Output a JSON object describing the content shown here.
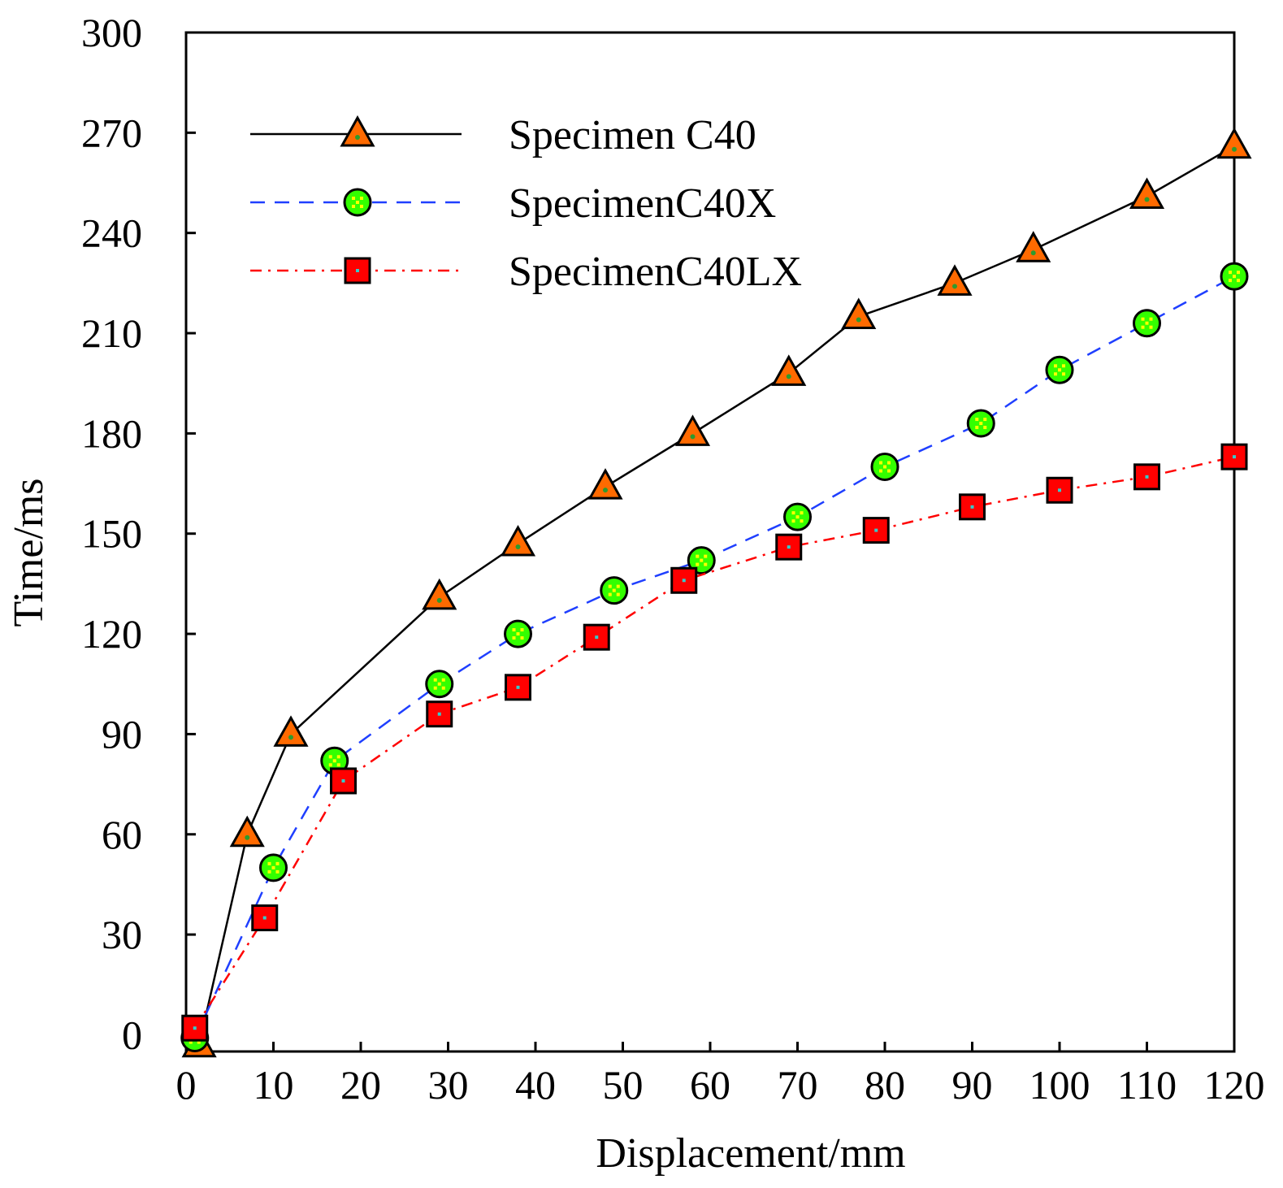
{
  "chart_data": {
    "type": "line",
    "title": "",
    "xlabel": "Displacement/mm",
    "ylabel": "Time/ms",
    "xlim": [
      0,
      120
    ],
    "ylim": [
      -5,
      300
    ],
    "xticks": [
      0,
      10,
      20,
      30,
      40,
      50,
      60,
      70,
      80,
      90,
      100,
      110,
      120
    ],
    "yticks": [
      0,
      30,
      60,
      90,
      120,
      150,
      180,
      210,
      240,
      270,
      300
    ],
    "grid": false,
    "legend_position": "top-left",
    "series": [
      {
        "name": "Specimen C40",
        "color": "#000000",
        "line_style": "solid",
        "marker": "triangle",
        "marker_fill": "#ff6a00",
        "marker_dot": "#2e9a2e",
        "x": [
          1.5,
          7,
          12,
          29,
          38,
          48,
          58,
          69,
          77,
          88,
          97,
          110,
          120
        ],
        "y": [
          -3,
          60,
          90,
          131,
          147,
          164,
          180,
          198,
          215,
          225,
          235,
          251,
          266
        ]
      },
      {
        "name": "SpecimenC40X",
        "color": "#1f3fff",
        "line_style": "dashed",
        "marker": "circle",
        "marker_fill": "#33ff00",
        "marker_dot": "#ffff00",
        "x": [
          1,
          10,
          17,
          29,
          38,
          49,
          59,
          70,
          80,
          91,
          100,
          110,
          120
        ],
        "y": [
          -1,
          50,
          82,
          105,
          120,
          133,
          142,
          155,
          170,
          183,
          199,
          213,
          227
        ]
      },
      {
        "name": "SpecimenC40LX",
        "color": "#ff0000",
        "line_style": "dash-dot",
        "marker": "square",
        "marker_fill": "#ff0000",
        "marker_dot": "#33cccc",
        "x": [
          1,
          9,
          18,
          29,
          38,
          47,
          57,
          69,
          79,
          90,
          100,
          110,
          120
        ],
        "y": [
          2,
          35,
          76,
          96,
          104,
          119,
          136,
          146,
          151,
          158,
          163,
          167,
          173
        ]
      }
    ]
  }
}
